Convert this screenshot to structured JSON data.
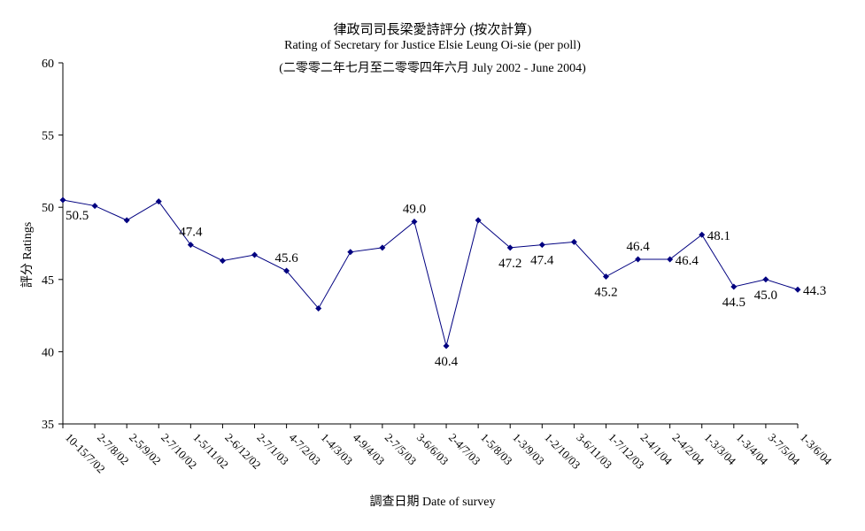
{
  "chart_data": {
    "type": "line",
    "title": "律政司司長梁愛詩評分 (按次計算)",
    "subtitle": "Rating of Secretary for Justice Elsie Leung Oi-sie  (per poll)",
    "subtitle2": "(二零零二年七月至二零零四年六月 July 2002 - June 2004)",
    "xlabel": "調查日期 Date of survey",
    "ylabel": "評分 Ratings",
    "ylim": [
      35,
      60
    ],
    "yticks": [
      35,
      40,
      45,
      50,
      55,
      60
    ],
    "grid": false,
    "line_color": "#000080",
    "categories": [
      "10-15/7/02",
      "2-7/8/02",
      "2-5/9/02",
      "2-7/10/02",
      "1-5/11/02",
      "2-6/12/02",
      "2-7/1/03",
      "4-7/2/03",
      "1-4/3/03",
      "4-9/4/03",
      "2-7/5/03",
      "3-6/6/03",
      "2-4/7/03",
      "1-5/8/03",
      "1-3/9/03",
      "1-2/10/03",
      "3-6/11/03",
      "1-7/12/03",
      "2-4/1/04",
      "2-4/2/04",
      "1-3/3/04",
      "1-3/4/04",
      "3-7/5/04",
      "1-3/6/04"
    ],
    "values": [
      50.5,
      50.1,
      49.1,
      50.4,
      47.4,
      46.3,
      46.7,
      45.6,
      43.0,
      46.9,
      47.2,
      49.0,
      40.4,
      49.1,
      47.2,
      47.4,
      47.6,
      45.2,
      46.4,
      46.4,
      48.1,
      44.5,
      45.0,
      44.3
    ],
    "data_labels": [
      {
        "index": 0,
        "text": "50.5",
        "pos": "below"
      },
      {
        "index": 4,
        "text": "47.4",
        "pos": "above"
      },
      {
        "index": 7,
        "text": "45.6",
        "pos": "above"
      },
      {
        "index": 11,
        "text": "49.0",
        "pos": "above"
      },
      {
        "index": 12,
        "text": "40.4",
        "pos": "below"
      },
      {
        "index": 14,
        "text": "47.2",
        "pos": "below"
      },
      {
        "index": 15,
        "text": "47.4",
        "pos": "below"
      },
      {
        "index": 17,
        "text": "45.2",
        "pos": "below"
      },
      {
        "index": 18,
        "text": "46.4",
        "pos": "above"
      },
      {
        "index": 19,
        "text": "46.4",
        "pos": "right"
      },
      {
        "index": 20,
        "text": "48.1",
        "pos": "right"
      },
      {
        "index": 21,
        "text": "44.5",
        "pos": "below"
      },
      {
        "index": 22,
        "text": "45.0",
        "pos": "below"
      },
      {
        "index": 23,
        "text": "44.3",
        "pos": "right"
      }
    ]
  }
}
